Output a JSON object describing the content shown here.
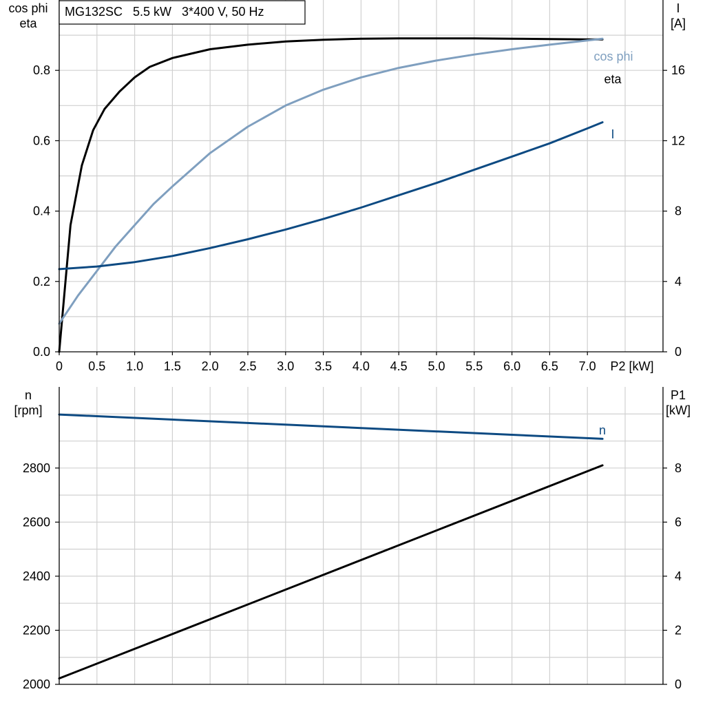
{
  "title_box": "MG132SC   5.5 kW   3*400 V, 50 Hz",
  "colors": {
    "black": "#000000",
    "light_blue": "#7f9fbf",
    "dark_blue": "#0d4a82",
    "grid": "#d0d0d0"
  },
  "chart_data": [
    {
      "type": "line",
      "left_axis_label": [
        "cos phi",
        "eta"
      ],
      "right_axis_label": [
        "I",
        "[A]"
      ],
      "x_axis_label": "P2 [kW]",
      "x_ticks": [
        0,
        0.5,
        1.0,
        1.5,
        2.0,
        2.5,
        3.0,
        3.5,
        4.0,
        4.5,
        5.0,
        5.5,
        6.0,
        6.5,
        7.0
      ],
      "x_tick_labels": [
        "0",
        "0.5",
        "1.0",
        "1.5",
        "2.0",
        "2.5",
        "3.0",
        "3.5",
        "4.0",
        "4.5",
        "5.0",
        "5.5",
        "6.0",
        "6.5",
        "7.0"
      ],
      "xlim": [
        0,
        8
      ],
      "y_left_ticks": [
        0,
        0.2,
        0.4,
        0.6,
        0.8
      ],
      "y_left_tick_labels": [
        "0.0",
        "0.2",
        "0.4",
        "0.6",
        "0.8"
      ],
      "ylim_left": [
        0,
        1.0
      ],
      "y_right_ticks": [
        0,
        4,
        8,
        12,
        16
      ],
      "y_right_tick_labels": [
        "0",
        "4",
        "8",
        "12",
        "16"
      ],
      "ylim_right": [
        0,
        20
      ],
      "grid": true,
      "series": [
        {
          "name": "eta",
          "axis": "left",
          "color": "#000000",
          "x": [
            0,
            0.15,
            0.3,
            0.45,
            0.6,
            0.8,
            1.0,
            1.2,
            1.5,
            2.0,
            2.5,
            3.0,
            3.5,
            4.0,
            4.5,
            5.0,
            5.5,
            6.0,
            6.5,
            7.0,
            7.2
          ],
          "y": [
            0.0,
            0.36,
            0.53,
            0.63,
            0.69,
            0.74,
            0.78,
            0.81,
            0.835,
            0.86,
            0.873,
            0.882,
            0.887,
            0.89,
            0.891,
            0.891,
            0.891,
            0.89,
            0.889,
            0.888,
            0.888
          ]
        },
        {
          "name": "cos phi",
          "axis": "left",
          "color": "#7f9fbf",
          "x": [
            0,
            0.25,
            0.5,
            0.75,
            1.0,
            1.25,
            1.5,
            2.0,
            2.5,
            3.0,
            3.5,
            4.0,
            4.5,
            5.0,
            5.5,
            6.0,
            6.5,
            7.0,
            7.2
          ],
          "y": [
            0.08,
            0.16,
            0.23,
            0.3,
            0.36,
            0.42,
            0.47,
            0.565,
            0.64,
            0.7,
            0.745,
            0.78,
            0.807,
            0.828,
            0.845,
            0.86,
            0.873,
            0.885,
            0.89
          ]
        },
        {
          "name": "I",
          "axis": "right",
          "color": "#0d4a82",
          "x": [
            0,
            0.5,
            1.0,
            1.5,
            2.0,
            2.5,
            3.0,
            3.5,
            4.0,
            4.5,
            5.0,
            5.5,
            6.0,
            6.5,
            7.0,
            7.2
          ],
          "y": [
            4.7,
            4.85,
            5.1,
            5.45,
            5.9,
            6.4,
            6.95,
            7.55,
            8.2,
            8.9,
            9.6,
            10.35,
            11.1,
            11.85,
            12.7,
            13.05
          ]
        }
      ],
      "series_labels": {
        "cos phi": "cos phi",
        "eta": "eta",
        "I": "I"
      }
    },
    {
      "type": "line",
      "left_axis_label": [
        "n",
        "[rpm]"
      ],
      "right_axis_label": [
        "P1",
        "[kW]"
      ],
      "xlim": [
        0,
        8
      ],
      "y_left_ticks": [
        2000,
        2200,
        2400,
        2600,
        2800
      ],
      "y_left_tick_labels": [
        "2000",
        "2200",
        "2400",
        "2600",
        "2800"
      ],
      "ylim_left": [
        2000,
        3100
      ],
      "y_right_ticks": [
        0,
        2,
        4,
        6,
        8
      ],
      "y_right_tick_labels": [
        "0",
        "2",
        "4",
        "6",
        "8"
      ],
      "ylim_right": [
        0,
        11
      ],
      "grid": true,
      "series": [
        {
          "name": "n",
          "axis": "left",
          "color": "#0d4a82",
          "x": [
            0,
            7.2
          ],
          "y": [
            2998,
            2908
          ]
        },
        {
          "name": "P1",
          "axis": "right",
          "color": "#000000",
          "x": [
            0,
            7.2
          ],
          "y": [
            0.22,
            8.1
          ]
        }
      ],
      "series_labels": {
        "n": "n"
      }
    }
  ]
}
